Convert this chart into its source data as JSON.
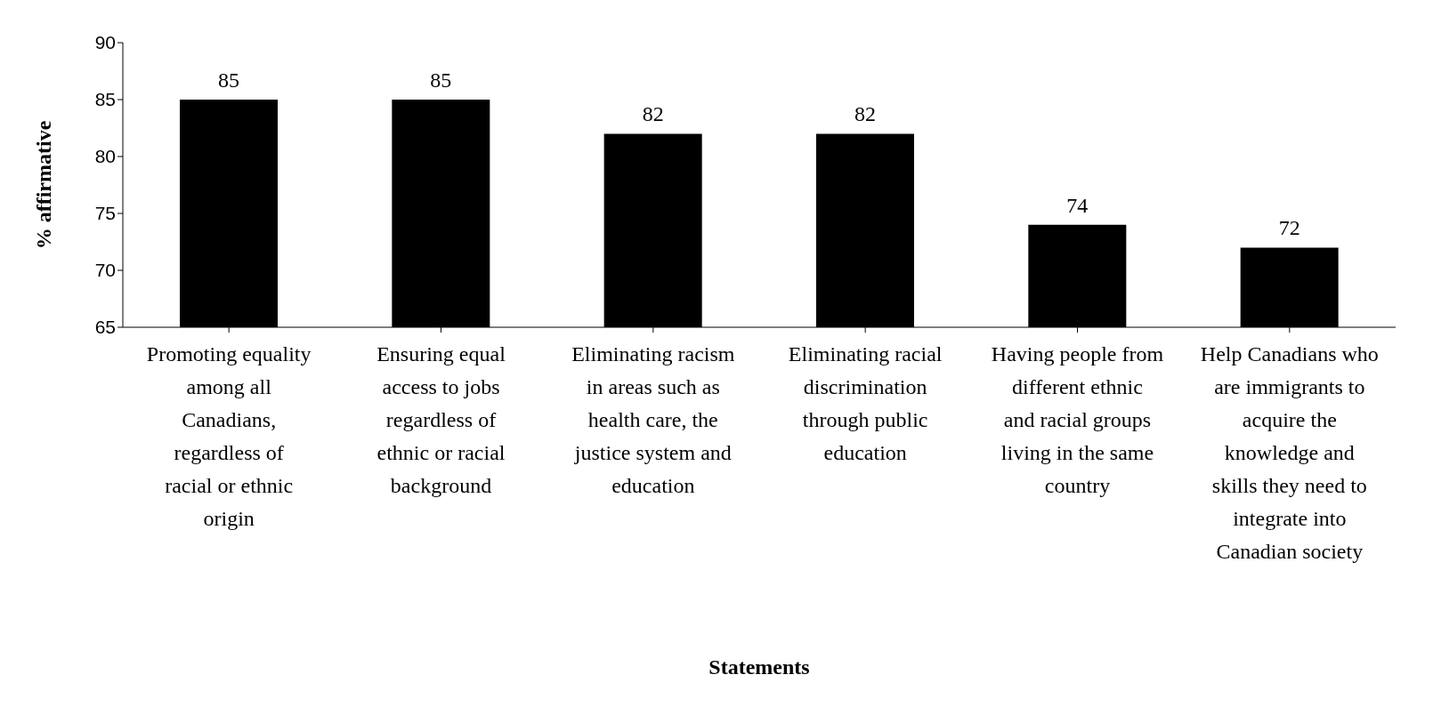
{
  "chart_data": {
    "type": "bar",
    "xlabel": "Statements",
    "ylabel": "% affirmative",
    "categories": [
      "Promoting equality among all Canadians, regardless of racial or ethnic origin",
      "Ensuring equal access to jobs regardless of ethnic or racial background",
      "Eliminating racism in areas such as health care, the justice system and education",
      "Eliminating racial discrimination through public education",
      "Having people from different ethnic and racial groups living in the same country",
      "Help Canadians who are immigrants to acquire the knowledge and skills they need to integrate into Canadian society"
    ],
    "values": [
      85,
      85,
      82,
      82,
      74,
      72
    ],
    "color": "#000000",
    "ylim": [
      65,
      90
    ],
    "yticks": [
      65,
      70,
      75,
      80,
      85,
      90
    ],
    "grid": false,
    "data_labels": true
  }
}
